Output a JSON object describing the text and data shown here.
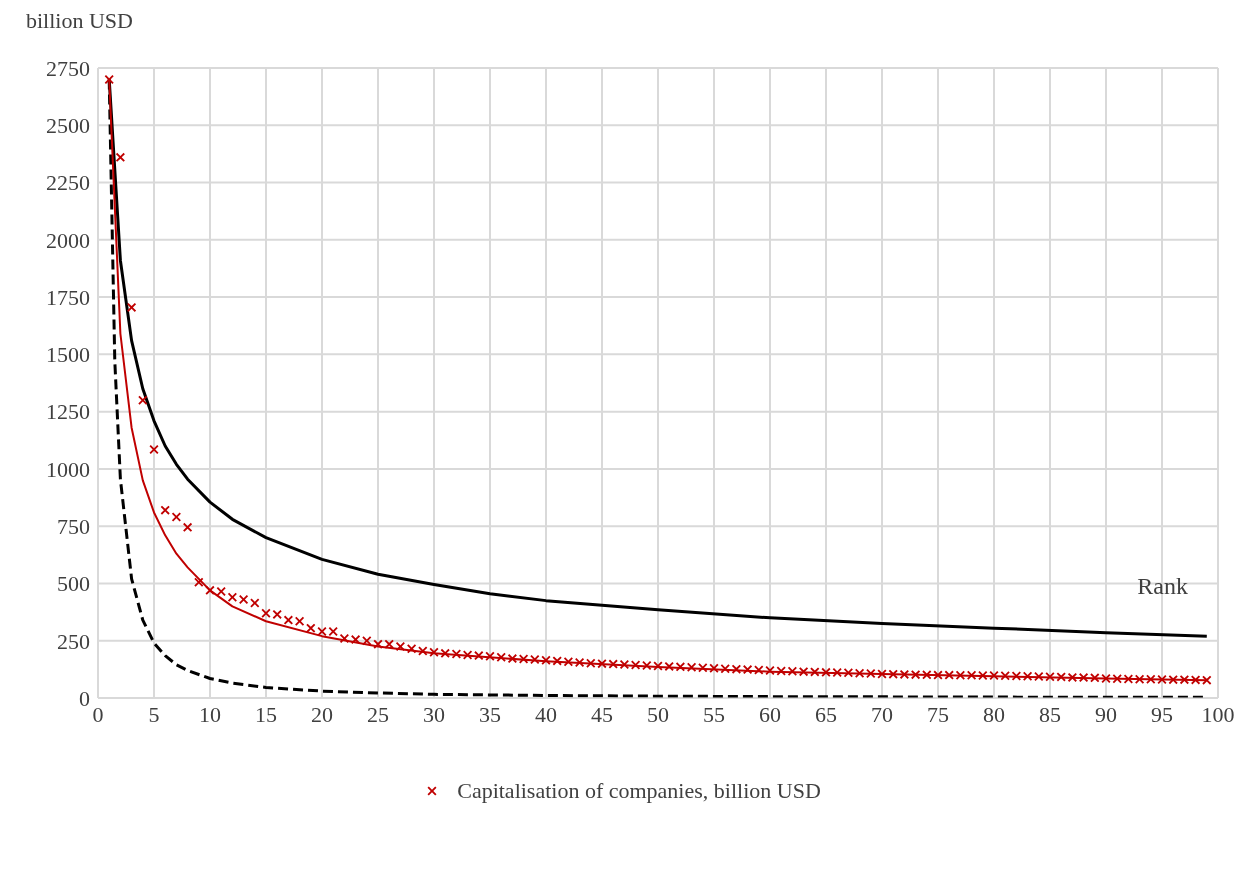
{
  "chart_data": {
    "type": "line",
    "ylabel": "billion USD",
    "xlabel": "Rank",
    "xlim": [
      0,
      100
    ],
    "xticks": [
      0,
      5,
      10,
      15,
      20,
      25,
      30,
      35,
      40,
      45,
      50,
      55,
      60,
      65,
      70,
      75,
      80,
      85,
      90,
      95,
      100
    ],
    "ylim": [
      0,
      2750
    ],
    "yticks": [
      0,
      250,
      500,
      750,
      1000,
      1250,
      1500,
      1750,
      2000,
      2250,
      2500,
      2750
    ],
    "grid": true,
    "legend": "bottom",
    "series": [
      {
        "color": "#000000",
        "line_style": "solid",
        "marker": "none",
        "x": [
          1,
          2,
          3,
          4,
          5,
          6,
          7,
          8,
          10,
          12,
          15,
          20,
          25,
          30,
          35,
          40,
          50,
          60,
          70,
          80,
          90,
          99
        ],
        "values": [
          2700,
          1910,
          1560,
          1350,
          1210,
          1100,
          1020,
          955,
          855,
          780,
          700,
          605,
          540,
          495,
          455,
          425,
          385,
          350,
          325,
          305,
          285,
          270
        ]
      },
      {
        "color": "#000000",
        "line_style": "dashed",
        "marker": "none",
        "x": [
          1,
          1.5,
          2,
          3,
          4,
          5,
          6,
          7,
          8,
          10,
          12,
          15,
          20,
          25,
          30,
          40,
          50,
          60,
          70,
          80,
          90,
          99
        ],
        "values": [
          2700,
          1470,
          955,
          520,
          340,
          240,
          185,
          145,
          120,
          85,
          65,
          46,
          30,
          22,
          16,
          11,
          8,
          6,
          5,
          4,
          3,
          3
        ]
      },
      {
        "color": "#c00000",
        "line_style": "solid",
        "marker": "none",
        "x": [
          1,
          2,
          3,
          4,
          5,
          6,
          7,
          8,
          10,
          12,
          15,
          20,
          25,
          30,
          40,
          50,
          60,
          70,
          80,
          90,
          99
        ],
        "values": [
          2700,
          1590,
          1180,
          950,
          810,
          710,
          630,
          570,
          470,
          400,
          335,
          270,
          225,
          195,
          160,
          135,
          115,
          105,
          95,
          85,
          78
        ]
      },
      {
        "type": "scatter",
        "name": "Capitalisation of companies, billion USD",
        "color": "#c00000",
        "marker": "cross",
        "x": [
          1,
          2,
          3,
          4,
          5,
          6,
          7,
          8,
          9,
          10,
          11,
          12,
          13,
          14,
          15,
          16,
          17,
          18,
          19,
          20,
          21,
          22,
          23,
          24,
          25,
          26,
          27,
          28,
          29,
          30,
          31,
          32,
          33,
          34,
          35,
          36,
          37,
          38,
          39,
          40,
          41,
          42,
          43,
          44,
          45,
          46,
          47,
          48,
          49,
          50,
          51,
          52,
          53,
          54,
          55,
          56,
          57,
          58,
          59,
          60,
          61,
          62,
          63,
          64,
          65,
          66,
          67,
          68,
          69,
          70,
          71,
          72,
          73,
          74,
          75,
          76,
          77,
          78,
          79,
          80,
          81,
          82,
          83,
          84,
          85,
          86,
          87,
          88,
          89,
          90,
          91,
          92,
          93,
          94,
          95,
          96,
          97,
          98,
          99
        ],
        "values": [
          2700,
          2360,
          1705,
          1300,
          1085,
          820,
          790,
          745,
          505,
          470,
          465,
          440,
          430,
          415,
          370,
          365,
          340,
          335,
          305,
          290,
          290,
          260,
          255,
          250,
          235,
          235,
          225,
          215,
          205,
          200,
          195,
          192,
          188,
          185,
          182,
          178,
          172,
          170,
          168,
          165,
          162,
          158,
          155,
          152,
          150,
          148,
          146,
          144,
          142,
          140,
          138,
          136,
          134,
          132,
          130,
          128,
          126,
          124,
          122,
          120,
          118,
          117,
          115,
          114,
          112,
          111,
          110,
          108,
          107,
          105,
          104,
          103,
          102,
          101,
          100,
          100,
          99,
          99,
          98,
          98,
          97,
          96,
          95,
          94,
          93,
          92,
          90,
          89,
          88,
          85,
          84,
          83,
          82,
          82,
          81,
          80,
          80,
          79,
          78
        ]
      }
    ]
  }
}
